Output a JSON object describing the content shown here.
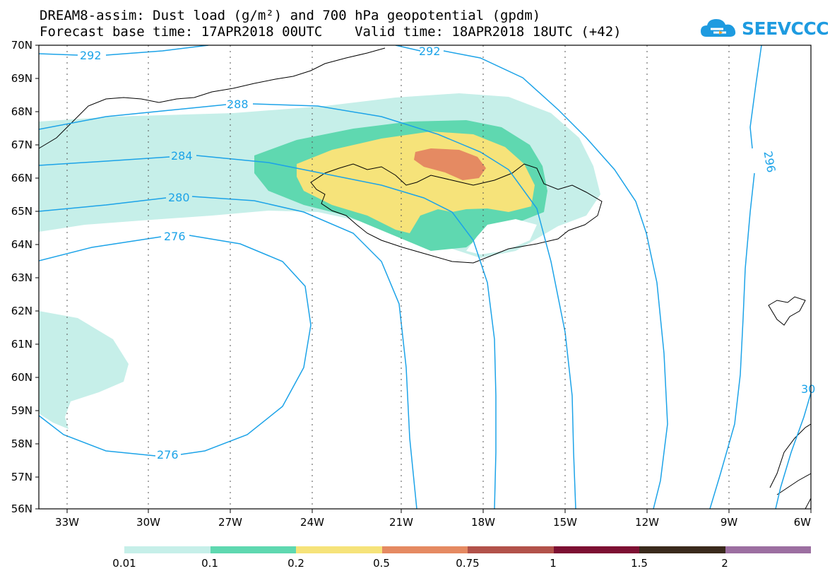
{
  "title": {
    "line1": "DREAM8-assim: Dust load (g/m²) and 700 hPa geopotential (gpdm)",
    "line2": "Forecast base time: 17APR2018 00UTC    Valid time: 18APR2018 18UTC (+42)"
  },
  "logo": {
    "text": "SEEVCCC",
    "icon": "cloud-icon",
    "color": "#1e9be0"
  },
  "map": {
    "lat_labels": [
      "70N",
      "69N",
      "68N",
      "67N",
      "66N",
      "65N",
      "64N",
      "63N",
      "62N",
      "61N",
      "60N",
      "59N",
      "58N",
      "57N",
      "56N"
    ],
    "lon_labels": [
      "33W",
      "30W",
      "27W",
      "24W",
      "21W",
      "18W",
      "15W",
      "12W",
      "9W",
      "6W"
    ],
    "lat_range": [
      56,
      70
    ],
    "lon_range": [
      -34.5,
      -6
    ],
    "contour_color": "#1ca3e8",
    "contour_labels": [
      "292",
      "292",
      "288",
      "284",
      "280",
      "276",
      "276",
      "296",
      "30"
    ]
  },
  "legend": {
    "ticks": [
      "0.01",
      "0.1",
      "0.2",
      "0.5",
      "0.75",
      "1",
      "1.5",
      "2"
    ],
    "colors": [
      "#c6efe9",
      "#5fd8b0",
      "#f6e37a",
      "#e58a62",
      "#b2524a",
      "#7d1033",
      "#3a2a1c",
      "#9c6fa1"
    ]
  }
}
